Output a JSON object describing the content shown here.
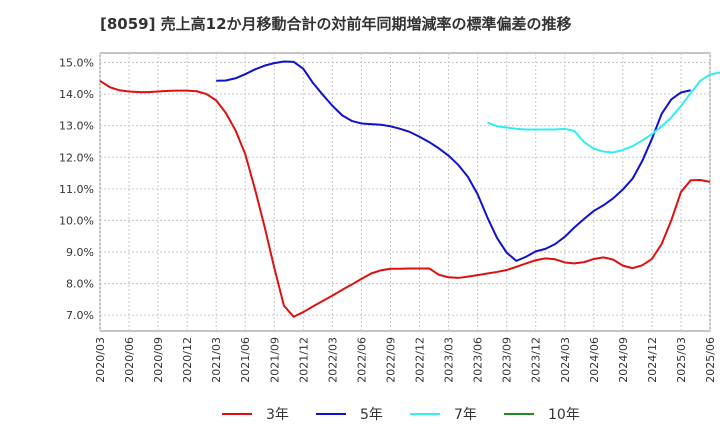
{
  "chart_data": {
    "type": "line",
    "title": "[8059]  売上高12か月移動合計の対前年同期増減率の標準偏差の推移",
    "xlabel": "",
    "ylabel": "",
    "ylim": [
      6.5,
      15.3
    ],
    "y_ticks": [
      7.0,
      8.0,
      9.0,
      10.0,
      11.0,
      12.0,
      13.0,
      14.0,
      15.0
    ],
    "y_tick_labels": [
      "7.0%",
      "8.0%",
      "9.0%",
      "10.0%",
      "11.0%",
      "12.0%",
      "13.0%",
      "14.0%",
      "15.0%"
    ],
    "x_tick_labels": [
      "2020/03",
      "2020/06",
      "2020/09",
      "2020/12",
      "2021/03",
      "2021/06",
      "2021/09",
      "2021/12",
      "2022/03",
      "2022/06",
      "2022/09",
      "2022/12",
      "2023/03",
      "2023/06",
      "2023/09",
      "2023/12",
      "2024/03",
      "2024/06",
      "2024/09",
      "2024/12",
      "2025/03",
      "2025/06"
    ],
    "grid": true,
    "legend_position": "bottom",
    "series": [
      {
        "name": "3年",
        "color": "#dd1111",
        "start_index": 0,
        "values": [
          14.42,
          14.22,
          14.12,
          14.08,
          14.06,
          14.06,
          14.08,
          14.1,
          14.11,
          14.11,
          14.09,
          14.0,
          13.8,
          13.4,
          12.85,
          12.1,
          11.0,
          9.8,
          8.5,
          7.3,
          6.95,
          7.1,
          7.28,
          7.45,
          7.62,
          7.8,
          7.97,
          8.15,
          8.32,
          8.42,
          8.47,
          8.47,
          8.48,
          8.48,
          8.48,
          8.28,
          8.2,
          8.18,
          8.22,
          8.27,
          8.32,
          8.37,
          8.43,
          8.53,
          8.64,
          8.74,
          8.8,
          8.77,
          8.67,
          8.64,
          8.68,
          8.78,
          8.83,
          8.76,
          8.57,
          8.49,
          8.58,
          8.78,
          9.25,
          10.0,
          10.9,
          11.27,
          11.28,
          11.22
        ]
      },
      {
        "name": "5年",
        "color": "#1111cc",
        "start_index": 12,
        "values": [
          14.42,
          14.43,
          14.5,
          14.63,
          14.78,
          14.9,
          14.98,
          15.03,
          15.02,
          14.8,
          14.35,
          13.98,
          13.63,
          13.33,
          13.15,
          13.07,
          13.05,
          13.03,
          12.98,
          12.9,
          12.8,
          12.65,
          12.48,
          12.28,
          12.05,
          11.76,
          11.38,
          10.83,
          10.1,
          9.45,
          8.98,
          8.72,
          8.85,
          9.02,
          9.1,
          9.25,
          9.48,
          9.78,
          10.05,
          10.3,
          10.48,
          10.7,
          10.98,
          11.32,
          11.88,
          12.58,
          13.37,
          13.83,
          14.05,
          14.12
        ]
      },
      {
        "name": "7年",
        "color": "#33eeee",
        "start_index": 40,
        "values": [
          13.1,
          12.98,
          12.94,
          12.9,
          12.88,
          12.88,
          12.88,
          12.88,
          12.9,
          12.83,
          12.48,
          12.27,
          12.18,
          12.15,
          12.23,
          12.35,
          12.53,
          12.73,
          12.98,
          13.26,
          13.62,
          14.03,
          14.42,
          14.62,
          14.68,
          14.67
        ]
      },
      {
        "name": "10年",
        "color": "#228822",
        "start_index": 0,
        "values": []
      }
    ]
  }
}
